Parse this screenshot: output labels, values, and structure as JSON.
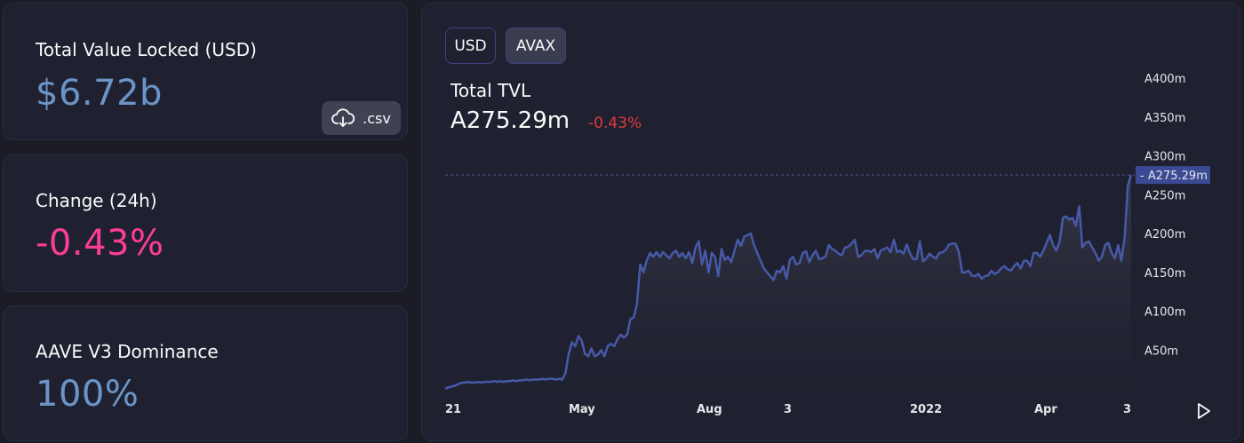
{
  "stats": {
    "tvl": {
      "title": "Total Value Locked (USD)",
      "value": "$6.72b",
      "csv_label": ".csv"
    },
    "change": {
      "title": "Change (24h)",
      "value": "-0.43%"
    },
    "dominance": {
      "title": "AAVE V3 Dominance",
      "value": "100%"
    }
  },
  "chart_panel": {
    "toggles": [
      "USD",
      "AVAX"
    ],
    "active_toggle": "AVAX",
    "title": "Total TVL",
    "current_value": "A275.29m",
    "current_change": "-0.43%",
    "colors": {
      "line": "#4759a8",
      "negative": "#e13a3a",
      "positive_pink": "#fd3c99",
      "stat_blue": "#6b95c8",
      "crosshair_label_bg": "#3b4a94"
    }
  },
  "chart_data": {
    "type": "area",
    "title": "Total TVL",
    "y_unit_prefix": "A",
    "y_tick_labels": [
      "A50m",
      "A100m",
      "A150m",
      "A200m",
      "A250m",
      "A300m",
      "A350m",
      "A400m"
    ],
    "y_ticks": [
      50,
      100,
      150,
      200,
      250,
      300,
      350,
      400
    ],
    "ylim": [
      0,
      400
    ],
    "x_tick_labels": [
      "21",
      "May",
      "Aug",
      "3",
      "2022",
      "Apr",
      "3"
    ],
    "crosshair_label": "A275.29m",
    "crosshair_value": 275.29,
    "grid": false,
    "series": [
      {
        "values": [
          0,
          2,
          3,
          4,
          6,
          8,
          8,
          9,
          8,
          8,
          9,
          8,
          9,
          9,
          9,
          10,
          9,
          10,
          9,
          10,
          10,
          11,
          10,
          11,
          11,
          12,
          11,
          12,
          12,
          12,
          13,
          12,
          13,
          13,
          12,
          13,
          12,
          20,
          45,
          60,
          55,
          68,
          62,
          45,
          42,
          52,
          42,
          44,
          50,
          42,
          55,
          58,
          55,
          64,
          70,
          66,
          70,
          90,
          92,
          110,
          160,
          150,
          165,
          175,
          170,
          176,
          170,
          176,
          172,
          168,
          175,
          178,
          170,
          175,
          168,
          176,
          162,
          182,
          190,
          160,
          178,
          150,
          175,
          170,
          145,
          180,
          166,
          170,
          163,
          178,
          192,
          184,
          196,
          198,
          200,
          185,
          175,
          165,
          155,
          150,
          145,
          140,
          152,
          150,
          158,
          142,
          166,
          170,
          160,
          162,
          175,
          177,
          163,
          172,
          178,
          167,
          168,
          170,
          185,
          180,
          178,
          174,
          172,
          182,
          183,
          187,
          192,
          170,
          172,
          177,
          178,
          176,
          180,
          168,
          178,
          180,
          182,
          176,
          192,
          176,
          178,
          174,
          186,
          174,
          167,
          167,
          190,
          164,
          168,
          174,
          170,
          168,
          175,
          176,
          179,
          186,
          187,
          187,
          176,
          150,
          150,
          152,
          146,
          145,
          148,
          142,
          145,
          146,
          152,
          148,
          150,
          155,
          158,
          154,
          152,
          158,
          162,
          155,
          165,
          165,
          158,
          175,
          175,
          170,
          178,
          188,
          198,
          185,
          178,
          190,
          220,
          222,
          218,
          220,
          210,
          235,
          182,
          188,
          190,
          182,
          175,
          165,
          170,
          185,
          188,
          175,
          168,
          185,
          165,
          195,
          262,
          275.29
        ]
      }
    ]
  }
}
